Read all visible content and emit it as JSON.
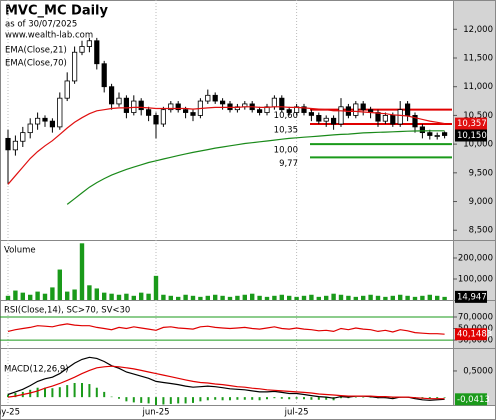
{
  "chart_data": [
    {
      "type": "candlestick",
      "title": "MVC_MC Daily",
      "subtitle": "as of 30/07/2025",
      "source": "www.wealth-lab.com",
      "categories": [
        "ay-25",
        null,
        null,
        null,
        null,
        null,
        null,
        null,
        null,
        null,
        null,
        null,
        null,
        null,
        null,
        null,
        null,
        null,
        null,
        null,
        "jun-25",
        null,
        null,
        null,
        null,
        null,
        null,
        null,
        null,
        null,
        null,
        null,
        null,
        null,
        null,
        null,
        null,
        null,
        null,
        "jul-25",
        null,
        null,
        null,
        null,
        null,
        null,
        null,
        null,
        null,
        null,
        null,
        null,
        null,
        null,
        null,
        null,
        null,
        null,
        null,
        null
      ],
      "open": [
        10100,
        9900,
        10050,
        10200,
        10350,
        10450,
        10400,
        10300,
        10800,
        11100,
        11600,
        11700,
        11800,
        11400,
        11000,
        10700,
        10800,
        10550,
        10750,
        10600,
        10500,
        10350,
        10600,
        10700,
        10600,
        10550,
        10500,
        10750,
        10850,
        10750,
        10700,
        10600,
        10650,
        10700,
        10600,
        10550,
        10650,
        10800,
        10600,
        10550,
        10650,
        10550,
        10500,
        10400,
        10450,
        10350,
        10650,
        10500,
        10700,
        10600,
        10550,
        10400,
        10500,
        10350,
        10700,
        10500,
        10300,
        10200,
        10150,
        10200
      ],
      "high": [
        10250,
        10150,
        10300,
        10450,
        10550,
        10500,
        10450,
        10900,
        11250,
        11700,
        11800,
        11850,
        11850,
        11450,
        11050,
        10900,
        10850,
        10850,
        10800,
        10650,
        10550,
        10650,
        10750,
        10750,
        10650,
        10600,
        10800,
        10950,
        10900,
        10800,
        10750,
        10700,
        10750,
        10750,
        10650,
        10700,
        10850,
        10850,
        10650,
        10700,
        10700,
        10600,
        10550,
        10500,
        10500,
        10800,
        10700,
        10750,
        10750,
        10650,
        10600,
        10550,
        10550,
        10750,
        10750,
        10550,
        10350,
        10250,
        10200,
        10220
      ],
      "low": [
        9300,
        9800,
        9950,
        10100,
        10250,
        10300,
        10200,
        10250,
        10750,
        11050,
        11550,
        11600,
        11300,
        10900,
        10600,
        10650,
        10450,
        10500,
        10500,
        10400,
        10100,
        10300,
        10550,
        10550,
        10450,
        10400,
        10450,
        10700,
        10700,
        10600,
        10550,
        10550,
        10600,
        10550,
        10500,
        10500,
        10600,
        10550,
        10500,
        10500,
        10500,
        10400,
        10350,
        10300,
        10250,
        10300,
        10450,
        10450,
        10500,
        10450,
        10300,
        10350,
        10300,
        10300,
        10400,
        10200,
        10100,
        10080,
        10080,
        10100
      ],
      "close": [
        9900,
        10050,
        10200,
        10350,
        10450,
        10400,
        10300,
        10800,
        11100,
        11600,
        11700,
        11800,
        11400,
        11000,
        10700,
        10800,
        10550,
        10750,
        10600,
        10500,
        10350,
        10600,
        10700,
        10600,
        10550,
        10500,
        10750,
        10850,
        10750,
        10700,
        10600,
        10650,
        10700,
        10600,
        10550,
        10650,
        10800,
        10600,
        10550,
        10650,
        10550,
        10500,
        10400,
        10450,
        10350,
        10650,
        10500,
        10700,
        10600,
        10550,
        10400,
        10500,
        10350,
        10600,
        10500,
        10300,
        10200,
        10150,
        10150,
        10150
      ],
      "up_color": "#ffffff",
      "down_color": "#000000",
      "close_label": "10,150",
      "series": [
        {
          "name": "EMA(Close,21)",
          "color": "#e01010",
          "last_label": "10,357",
          "values": [
            9300,
            9450,
            9600,
            9750,
            9870,
            9970,
            10060,
            10170,
            10280,
            10380,
            10460,
            10530,
            10580,
            10600,
            10620,
            10630,
            10630,
            10640,
            10640,
            10630,
            10620,
            10620,
            10620,
            10620,
            10620,
            10610,
            10620,
            10630,
            10640,
            10640,
            10640,
            10640,
            10650,
            10650,
            10640,
            10640,
            10650,
            10650,
            10640,
            10640,
            10630,
            10620,
            10610,
            10600,
            10580,
            10580,
            10570,
            10570,
            10560,
            10550,
            10540,
            10530,
            10510,
            10500,
            10490,
            10460,
            10430,
            10400,
            10380,
            10357
          ]
        },
        {
          "name": "EMA(Close,70)",
          "color": "#1a8a1a",
          "values": [
            null,
            null,
            null,
            null,
            null,
            null,
            null,
            null,
            8950,
            9050,
            9150,
            9250,
            9330,
            9400,
            9460,
            9510,
            9560,
            9600,
            9640,
            9680,
            9710,
            9740,
            9770,
            9800,
            9830,
            9855,
            9880,
            9905,
            9930,
            9950,
            9970,
            9990,
            10010,
            10025,
            10040,
            10055,
            10070,
            10085,
            10100,
            10110,
            10120,
            10130,
            10140,
            10150,
            10160,
            10170,
            10175,
            10185,
            10195,
            10200,
            10205,
            10210,
            10215,
            10220,
            10225,
            10228,
            10230,
            10232,
            10232,
            10232
          ]
        }
      ],
      "levels": [
        {
          "value": 10600,
          "label": "10,60",
          "color": "#e00000"
        },
        {
          "value": 10350,
          "label": "10,35",
          "color": "#e00000"
        },
        {
          "value": 10000,
          "label": "10,00",
          "color": "#1a9a1a"
        },
        {
          "value": 9770,
          "label": "9,77",
          "color": "#1a9a1a"
        }
      ],
      "ylim": [
        8330,
        12510
      ],
      "yticks": [
        {
          "value": 8500,
          "label": "8,500"
        },
        {
          "value": 9000,
          "label": "9,000"
        },
        {
          "value": 9500,
          "label": "9,500"
        },
        {
          "value": 10000,
          "label": "10,000"
        },
        {
          "value": 10500,
          "label": "10,500"
        },
        {
          "value": 11000,
          "label": "11,000"
        },
        {
          "value": 11500,
          "label": "11,500"
        },
        {
          "value": 12000,
          "label": "12,000"
        }
      ]
    },
    {
      "type": "bar",
      "title": "Volume",
      "color": "#1a9a1a",
      "last_label": "14,947",
      "last_label_color": "#000000",
      "values": [
        20000,
        45000,
        35000,
        25000,
        40000,
        30000,
        60000,
        145000,
        40000,
        50000,
        270000,
        70000,
        55000,
        35000,
        30000,
        25000,
        30000,
        20000,
        35000,
        30000,
        115000,
        25000,
        20000,
        15000,
        25000,
        20000,
        15000,
        20000,
        25000,
        20000,
        15000,
        20000,
        25000,
        30000,
        20000,
        15000,
        20000,
        25000,
        20000,
        15000,
        20000,
        25000,
        15000,
        20000,
        30000,
        25000,
        20000,
        15000,
        20000,
        25000,
        20000,
        15000,
        20000,
        25000,
        20000,
        15000,
        20000,
        25000,
        20000,
        14947
      ],
      "ylim": [
        0,
        281000
      ],
      "yticks": [
        {
          "value": 100000,
          "label": "100,000"
        },
        {
          "value": 200000,
          "label": "200,000"
        }
      ]
    },
    {
      "type": "line",
      "title": "RSI(Close,14), SC>70, SV<30",
      "color": "#e00000",
      "last_label": "40,1483",
      "last_label_color": "#e00000",
      "bands": [
        70,
        30
      ],
      "band_color": "#1a9a1a",
      "values": [
        45,
        48,
        50,
        52,
        55,
        54,
        53,
        56,
        58,
        56,
        55,
        55,
        52,
        50,
        48,
        52,
        50,
        53,
        51,
        49,
        47,
        52,
        53,
        51,
        50,
        49,
        53,
        54,
        52,
        51,
        50,
        51,
        52,
        50,
        49,
        51,
        53,
        50,
        49,
        51,
        49,
        48,
        46,
        47,
        45,
        50,
        48,
        51,
        49,
        48,
        45,
        47,
        44,
        48,
        46,
        43,
        42,
        41,
        41,
        40.1483
      ],
      "ylim": [
        18,
        96
      ],
      "yticks": [
        {
          "value": 30,
          "label": "30,0000"
        },
        {
          "value": 50,
          "label": "50,0000"
        },
        {
          "value": 70,
          "label": "70,0000"
        }
      ]
    },
    {
      "type": "macd",
      "title": "MACD(12,26,9)",
      "last_label": "-0,0413",
      "last_label_color": "#1a9a1a",
      "series": [
        {
          "color": "#000000",
          "values": [
            0.05,
            0.1,
            0.15,
            0.22,
            0.3,
            0.35,
            0.38,
            0.45,
            0.55,
            0.65,
            0.72,
            0.76,
            0.74,
            0.68,
            0.6,
            0.55,
            0.48,
            0.44,
            0.4,
            0.36,
            0.3,
            0.28,
            0.26,
            0.24,
            0.21,
            0.19,
            0.2,
            0.21,
            0.2,
            0.18,
            0.16,
            0.15,
            0.14,
            0.12,
            0.1,
            0.1,
            0.11,
            0.09,
            0.07,
            0.07,
            0.05,
            0.03,
            0.01,
            0.0,
            -0.02,
            0.01,
            0.0,
            0.02,
            0.02,
            0.01,
            -0.01,
            -0.01,
            -0.03,
            0.0,
            0.0,
            -0.03,
            -0.05,
            -0.06,
            -0.05,
            -0.0413
          ]
        },
        {
          "color": "#e00000",
          "values": [
            0.0,
            0.02,
            0.05,
            0.08,
            0.12,
            0.17,
            0.21,
            0.26,
            0.32,
            0.38,
            0.45,
            0.51,
            0.56,
            0.58,
            0.59,
            0.58,
            0.56,
            0.54,
            0.51,
            0.48,
            0.45,
            0.42,
            0.39,
            0.36,
            0.33,
            0.3,
            0.28,
            0.27,
            0.25,
            0.24,
            0.22,
            0.2,
            0.19,
            0.17,
            0.16,
            0.14,
            0.13,
            0.12,
            0.11,
            0.1,
            0.09,
            0.08,
            0.06,
            0.05,
            0.04,
            0.03,
            0.02,
            0.02,
            0.02,
            0.02,
            0.01,
            0.01,
            0.0,
            0.0,
            0.0,
            -0.01,
            -0.02,
            -0.03,
            -0.03,
            -0.03
          ]
        }
      ],
      "histogram": {
        "color": "#1a9a1a",
        "values": [
          0.05,
          0.08,
          0.1,
          0.14,
          0.18,
          0.18,
          0.17,
          0.19,
          0.23,
          0.27,
          0.27,
          0.25,
          0.18,
          0.1,
          0.01,
          -0.03,
          -0.08,
          -0.1,
          -0.11,
          -0.12,
          -0.15,
          -0.14,
          -0.13,
          -0.12,
          -0.12,
          -0.11,
          -0.08,
          -0.06,
          -0.05,
          -0.06,
          -0.06,
          -0.05,
          -0.05,
          -0.05,
          -0.06,
          -0.04,
          -0.02,
          -0.03,
          -0.04,
          -0.03,
          -0.04,
          -0.05,
          -0.05,
          -0.05,
          -0.06,
          -0.02,
          -0.02,
          0.0,
          0.0,
          -0.01,
          -0.02,
          -0.02,
          -0.03,
          0.0,
          0.0,
          -0.02,
          -0.03,
          -0.03,
          -0.02,
          -0.0113
        ]
      },
      "ylim": [
        -0.15,
        0.9
      ],
      "yticks": [
        {
          "value": 0.5,
          "label": "0,5000"
        }
      ]
    }
  ]
}
